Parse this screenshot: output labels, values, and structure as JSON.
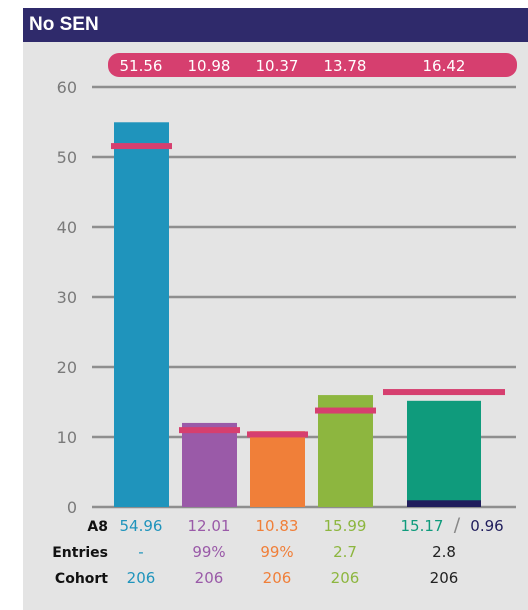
{
  "header": {
    "title": "No SEN"
  },
  "chart_data": {
    "type": "bar",
    "ylim": [
      0,
      60
    ],
    "yticks": [
      0,
      10,
      20,
      30,
      40,
      50,
      60
    ],
    "grid": true,
    "benchmarks": [
      "51.56",
      "10.98",
      "10.37",
      "13.78",
      "16.42"
    ],
    "benchmark_values": [
      51.56,
      10.98,
      10.37,
      13.78,
      16.42
    ],
    "bars": [
      {
        "value": 54.96,
        "color": "#1f94bc"
      },
      {
        "value": 12.01,
        "color": "#9a5aa8"
      },
      {
        "value": 10.83,
        "color": "#f07f39"
      },
      {
        "value": 15.99,
        "color": "#8db63f"
      },
      {
        "value": 15.17,
        "color": "#0f9b7c",
        "sub_value": 0.96,
        "sub_color": "#201d5c"
      }
    ],
    "rows": [
      {
        "label": "A8",
        "values": [
          "54.96",
          "12.01",
          "10.83",
          "15.99",
          "15.17"
        ],
        "extra": "0.96",
        "separator": "/"
      },
      {
        "label": "Entries",
        "values": [
          "-",
          "99%",
          "99%",
          "2.7",
          "2.8"
        ]
      },
      {
        "label": "Cohort",
        "values": [
          "206",
          "206",
          "206",
          "206",
          "206"
        ]
      }
    ],
    "colors": {
      "benchmark": "#d63f6f",
      "grid": "#8e8e8e",
      "text_dark": "#222222",
      "tick": "#7a7a7a"
    }
  }
}
